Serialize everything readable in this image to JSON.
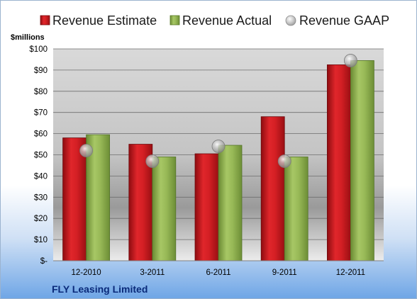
{
  "chart_data": {
    "type": "bar",
    "title": "",
    "ylabel": "$millions",
    "xlabel": "",
    "categories": [
      "12-2010",
      "3-2011",
      "6-2011",
      "9-2011",
      "12-2011"
    ],
    "series": [
      {
        "name": "Revenue Estimate",
        "type": "bar",
        "color": "#c0161c",
        "values": [
          58,
          55,
          50.5,
          68,
          92.5
        ]
      },
      {
        "name": "Revenue Actual",
        "type": "bar",
        "color": "#86a84a",
        "values": [
          59.5,
          49,
          54.5,
          49,
          94.5
        ]
      },
      {
        "name": "Revenue GAAP",
        "type": "scatter",
        "color": "#b8b8b8",
        "values": [
          52,
          47,
          54,
          47,
          94.5
        ]
      }
    ],
    "ylim": [
      0,
      100
    ],
    "yticks": [
      0,
      10,
      20,
      30,
      40,
      50,
      60,
      70,
      80,
      90,
      100
    ],
    "ytick_labels": [
      "$-",
      "$10",
      "$20",
      "$30",
      "$40",
      "$50",
      "$60",
      "$70",
      "$80",
      "$90",
      "$100"
    ],
    "grid": true,
    "legend_position": "top"
  },
  "company_name": "FLY Leasing Limited"
}
